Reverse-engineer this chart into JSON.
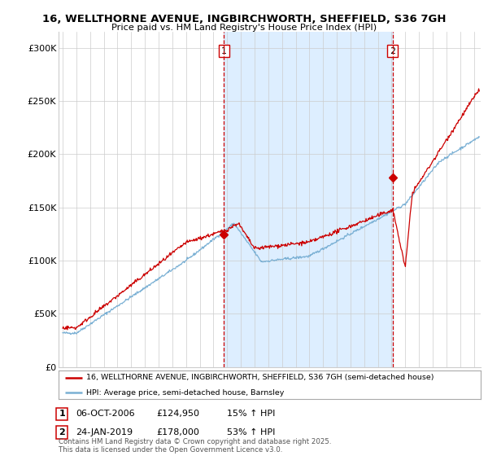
{
  "title_line1": "16, WELLTHORNE AVENUE, INGBIRCHWORTH, SHEFFIELD, S36 7GH",
  "title_line2": "Price paid vs. HM Land Registry's House Price Index (HPI)",
  "ylabel_ticks": [
    "£0",
    "£50K",
    "£100K",
    "£150K",
    "£200K",
    "£250K",
    "£300K"
  ],
  "ytick_vals": [
    0,
    50000,
    100000,
    150000,
    200000,
    250000,
    300000
  ],
  "ylim": [
    0,
    315000
  ],
  "xlim_start": 1994.7,
  "xlim_end": 2025.5,
  "transaction1_date": 2006.77,
  "transaction1_price": 124950,
  "transaction2_date": 2019.07,
  "transaction2_price": 178000,
  "legend_property": "16, WELLTHORNE AVENUE, INGBIRCHWORTH, SHEFFIELD, S36 7GH (semi-detached house)",
  "legend_hpi": "HPI: Average price, semi-detached house, Barnsley",
  "table_row1": [
    "1",
    "06-OCT-2006",
    "£124,950",
    "15% ↑ HPI"
  ],
  "table_row2": [
    "2",
    "24-JAN-2019",
    "£178,000",
    "53% ↑ HPI"
  ],
  "footnote": "Contains HM Land Registry data © Crown copyright and database right 2025.\nThis data is licensed under the Open Government Licence v3.0.",
  "property_color": "#cc0000",
  "hpi_color": "#7ab0d4",
  "shade_color": "#ddeeff",
  "vline_color": "#cc0000",
  "background_color": "#ffffff",
  "grid_color": "#cccccc"
}
